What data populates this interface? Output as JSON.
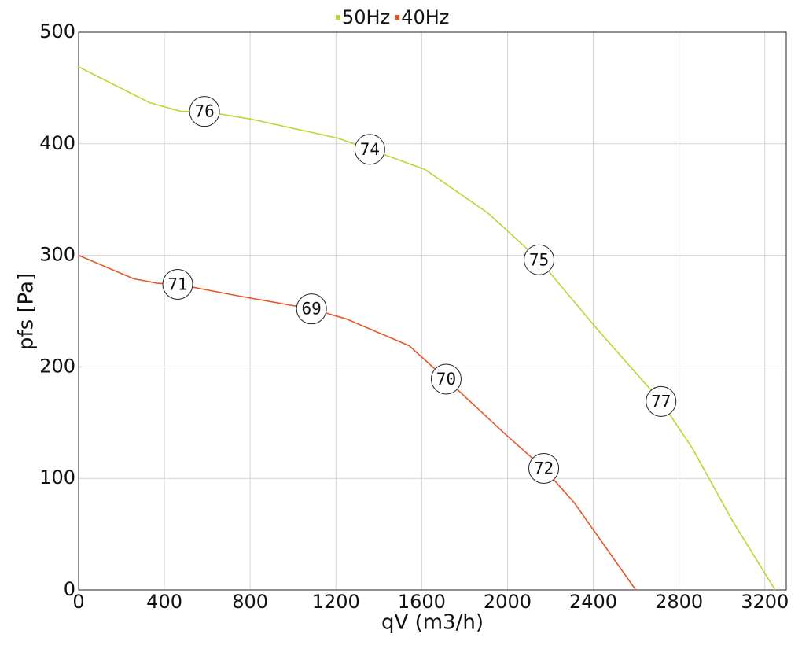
{
  "chart_data": {
    "type": "line",
    "x_label": "qV (m3/h)",
    "y_label": "pfs [Pa]",
    "xlim": [
      0,
      3300
    ],
    "xticks": [
      0,
      400,
      800,
      1200,
      1600,
      2000,
      2400,
      2800,
      3200
    ],
    "ylim": [
      0,
      500
    ],
    "yticks": [
      0,
      100,
      200,
      300,
      400,
      500
    ],
    "grid": true,
    "legend": "top",
    "series": [
      {
        "name": "50Hz",
        "color": "#b8d832",
        "x": [
          0,
          330,
          477,
          587,
          807,
          1211,
          1358,
          1615,
          1908,
          2147,
          2422,
          2716,
          2862,
          3046,
          3248
        ],
        "values": [
          469,
          437,
          429,
          429,
          422,
          405,
          395,
          377,
          338,
          296,
          233,
          169,
          127,
          63,
          0
        ]
      },
      {
        "name": "40Hz",
        "color": "#e8562a",
        "x": [
          0,
          257,
          367,
          462,
          734,
          1086,
          1248,
          1541,
          1714,
          1982,
          2169,
          2312,
          2598
        ],
        "values": [
          300,
          279,
          275,
          274,
          264,
          252,
          243,
          219,
          189,
          141,
          109,
          78,
          0
        ]
      }
    ],
    "annotations": [
      {
        "x": 587,
        "y": 429,
        "label": "76"
      },
      {
        "x": 1358,
        "y": 395,
        "label": "74"
      },
      {
        "x": 2147,
        "y": 296,
        "label": "75"
      },
      {
        "x": 2716,
        "y": 169,
        "label": "77"
      },
      {
        "x": 462,
        "y": 274,
        "label": "71"
      },
      {
        "x": 1086,
        "y": 252,
        "label": "69"
      },
      {
        "x": 1714,
        "y": 189,
        "label": "70"
      },
      {
        "x": 2169,
        "y": 109,
        "label": "72"
      }
    ]
  }
}
